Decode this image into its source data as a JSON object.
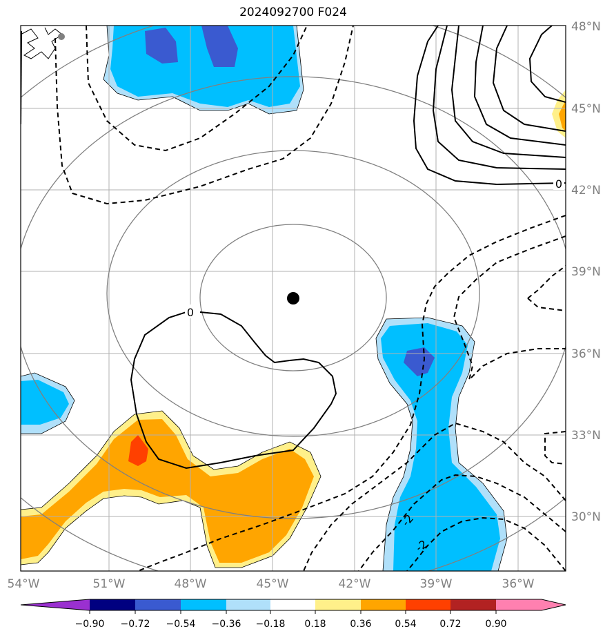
{
  "title": "2024092700 F024",
  "map": {
    "lat_labels": [
      "48°N",
      "45°N",
      "42°N",
      "39°N",
      "36°N",
      "33°N",
      "30°N"
    ],
    "lon_labels": [
      "54°W",
      "51°W",
      "48°W",
      "45°W",
      "42°W",
      "39°W",
      "36°W"
    ],
    "contour_labels": [
      "0",
      "0",
      "-2",
      "-2"
    ],
    "center_marker": "storm-center"
  },
  "colorbar": {
    "ticks": [
      "−0.90",
      "−0.72",
      "−0.54",
      "−0.36",
      "−0.18",
      "0.18",
      "0.36",
      "0.54",
      "0.72",
      "0.90"
    ],
    "colors": [
      "#9a30d0",
      "#000080",
      "#3a5ad0",
      "#00bfff",
      "#b0e0fa",
      "#ffffff",
      "#fff08a",
      "#ffa500",
      "#ff4000",
      "#b22222",
      "#ff80b0"
    ]
  }
}
